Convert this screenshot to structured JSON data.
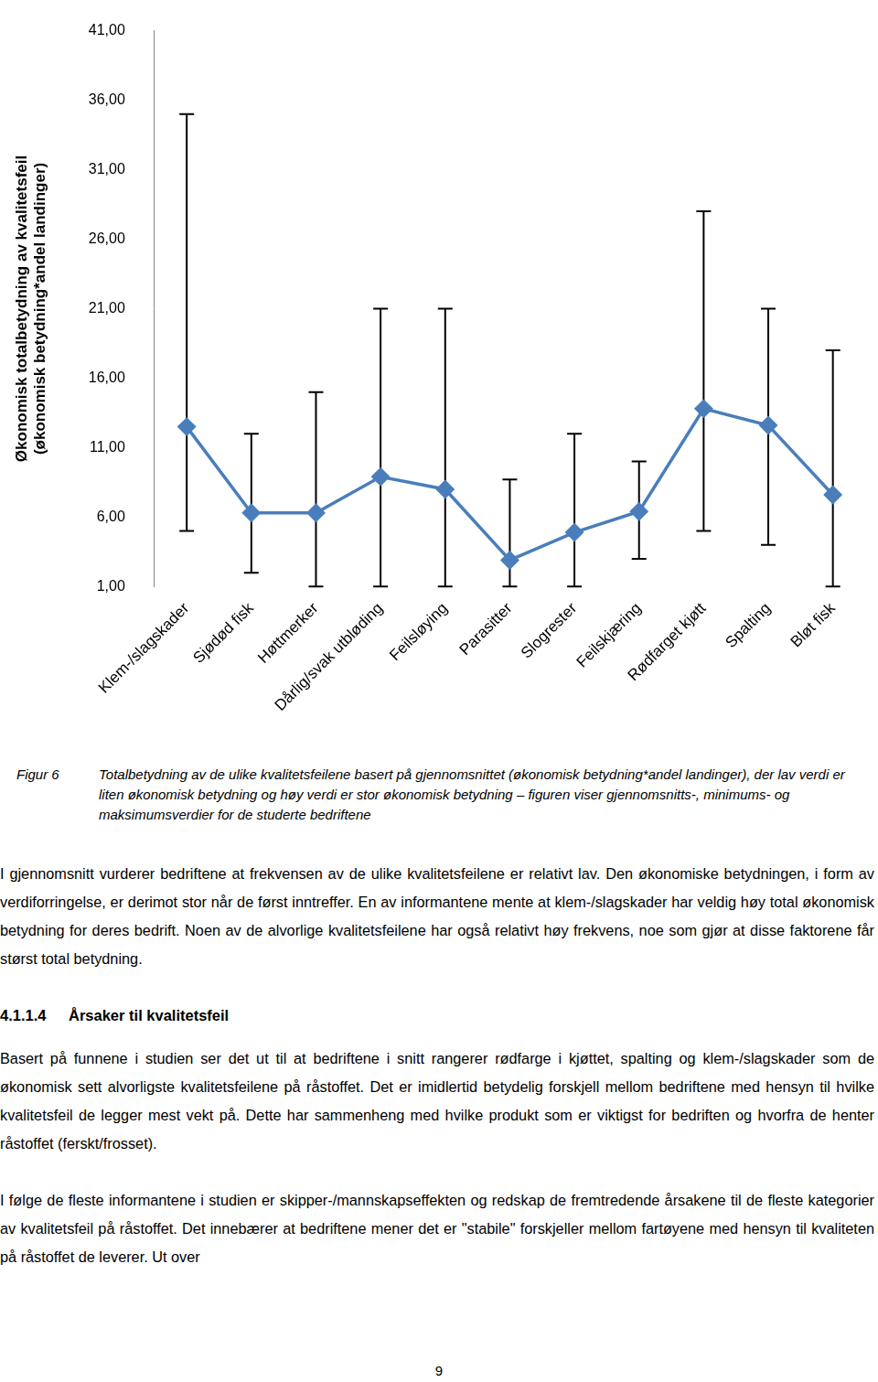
{
  "chart_data": {
    "type": "line",
    "y_label": [
      "Økonomisk totalbetydning av kvalitetsfeil",
      "(økonomisk betydning*andel landinger)"
    ],
    "categories": [
      "Klem-/slagskader",
      "Sjødød fisk",
      "Høttmerker",
      "Dårlig/svak utbløding",
      "Feilsløying",
      "Parasitter",
      "Slogrester",
      "Feilskjæring",
      "Rødfarget kjøtt",
      "Spalting",
      "Bløt fisk"
    ],
    "values": [
      12.5,
      6.3,
      6.3,
      8.9,
      8.0,
      2.9,
      4.9,
      6.4,
      13.8,
      12.6,
      7.6
    ],
    "min_values": [
      5.0,
      2.0,
      1.0,
      1.0,
      1.0,
      1.0,
      1.0,
      3.0,
      5.0,
      4.0,
      1.0
    ],
    "max_values": [
      35.0,
      12.0,
      15.0,
      21.0,
      21.0,
      8.7,
      12.0,
      10.0,
      28.0,
      21.0,
      18.0
    ],
    "color": "#4a7ebb",
    "marker": "diamond",
    "ylim": [
      1,
      41
    ],
    "yticks": [
      {
        "value": 1,
        "label": "1,00"
      },
      {
        "value": 6,
        "label": "6,00"
      },
      {
        "value": 11,
        "label": "11,00"
      },
      {
        "value": 16,
        "label": "16,00"
      },
      {
        "value": 21,
        "label": "21,00"
      },
      {
        "value": 26,
        "label": "26,00"
      },
      {
        "value": 31,
        "label": "31,00"
      },
      {
        "value": 36,
        "label": "36,00"
      },
      {
        "value": 41,
        "label": "41,00"
      }
    ],
    "grid": false
  },
  "caption": {
    "label": "Figur 6",
    "text": "Totalbetydning av de ulike kvalitetsfeilene basert på gjennomsnittet (økonomisk betydning*andel landinger), der lav verdi er liten økonomisk betydning og høy verdi er stor økonomisk betydning – figuren viser gjennomsnitts-, minimums- og maksimumsverdier for de studerte bedriftene"
  },
  "paragraphs": [
    "I gjennomsnitt vurderer bedriftene at frekvensen av de ulike kvalitetsfeilene er relativt lav. Den økonomiske betydningen, i form av verdiforringelse, er derimot stor når de først inntreffer. En av informantene mente at klem-/slagskader har veldig høy total økonomisk betydning for deres bedrift. Noen av de alvorlige kvalitetsfeilene har også relativt høy frekvens, noe som gjør at disse faktorene får størst total betydning."
  ],
  "section": {
    "number": "4.1.1.4",
    "title": "Årsaker til kvalitetsfeil",
    "paragraphs": [
      "Basert på funnene i studien ser det ut til at bedriftene i snitt rangerer rødfarge i kjøttet, spalting og klem-/slagskader som de økonomisk sett alvorligste kvalitetsfeilene på råstoffet. Det er imidlertid betydelig forskjell mellom bedriftene med hensyn til hvilke kvalitetsfeil de legger mest vekt på. Dette har sammenheng med hvilke produkt som er viktigst for bedriften og hvorfra de henter råstoffet (ferskt/frosset).",
      "I følge de fleste informantene i studien er skipper-/mannskapseffekten og redskap de fremtredende årsakene til de fleste kategorier av kvalitetsfeil på råstoffet. Det innebærer at bedriftene mener det er \"stabile\" forskjeller mellom fartøyene med hensyn til kvaliteten på råstoffet de leverer. Ut over"
    ]
  },
  "page_number": 9
}
